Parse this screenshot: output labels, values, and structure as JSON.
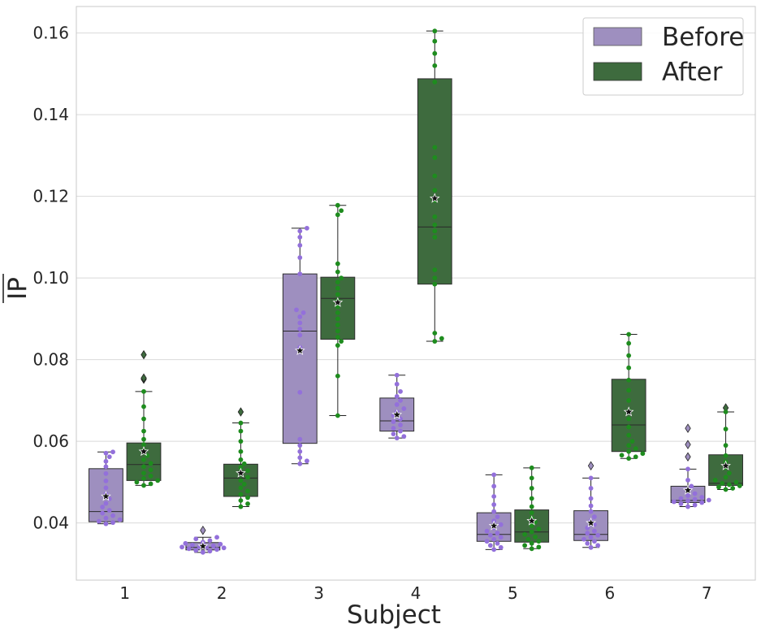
{
  "colors": {
    "before_box": "#9e8fbf",
    "before_point": "#9370db",
    "after_box": "#3e6b3e",
    "after_point": "#1e8c1e",
    "grid": "#d9d9d9",
    "frame": "#c8c8c8"
  },
  "chart_data": {
    "type": "box",
    "title": "",
    "xlabel": "Subject",
    "ylabel": "IP",
    "ylabel_style": "overlined",
    "ylim": [
      0.026,
      0.1665
    ],
    "yticks": [
      0.04,
      0.06,
      0.08,
      0.1,
      0.12,
      0.14,
      0.16
    ],
    "ytick_labels": [
      "0.04",
      "0.06",
      "0.08",
      "0.10",
      "0.12",
      "0.14",
      "0.16"
    ],
    "categories": [
      "1",
      "2",
      "3",
      "4",
      "5",
      "6",
      "7"
    ],
    "grid": "horizontal",
    "legend": {
      "position": "top-right",
      "entries": [
        "Before",
        "After"
      ]
    },
    "mean_marker": "star",
    "series": [
      {
        "name": "Before",
        "boxes": [
          {
            "category": "1",
            "whislo": 0.0398,
            "q1": 0.0403,
            "med": 0.0428,
            "q3": 0.0533,
            "whishi": 0.0574,
            "mean": 0.0465,
            "fliers": [],
            "points": [
              0.0398,
              0.0401,
              0.0404,
              0.0408,
              0.0412,
              0.0418,
              0.0424,
              0.0431,
              0.0439,
              0.0448,
              0.0459,
              0.0471,
              0.0486,
              0.0503,
              0.0521,
              0.0538,
              0.0551,
              0.0562,
              0.0571,
              0.0574
            ]
          },
          {
            "category": "2",
            "whislo": 0.0328,
            "q1": 0.0334,
            "med": 0.034,
            "q3": 0.0352,
            "whishi": 0.0365,
            "mean": 0.0343,
            "fliers": [
              0.0382
            ],
            "points": [
              0.0328,
              0.0331,
              0.0333,
              0.0335,
              0.0337,
              0.0339,
              0.034,
              0.0341,
              0.0342,
              0.0344,
              0.0346,
              0.0348,
              0.035,
              0.0353,
              0.0357,
              0.0361,
              0.0365
            ]
          },
          {
            "category": "3",
            "whislo": 0.0545,
            "q1": 0.0595,
            "med": 0.087,
            "q3": 0.101,
            "whishi": 0.1122,
            "mean": 0.0822,
            "fliers": [],
            "points": [
              0.0545,
              0.0552,
              0.056,
              0.0575,
              0.059,
              0.0605,
              0.072,
              0.083,
              0.086,
              0.0875,
              0.089,
              0.0905,
              0.0915,
              0.0922,
              0.101,
              0.105,
              0.108,
              0.11,
              0.1115,
              0.1122
            ]
          },
          {
            "category": "4",
            "whislo": 0.0608,
            "q1": 0.0625,
            "med": 0.065,
            "q3": 0.0706,
            "whishi": 0.0762,
            "mean": 0.0665,
            "fliers": [],
            "points": [
              0.0608,
              0.0612,
              0.0618,
              0.0625,
              0.0632,
              0.064,
              0.0648,
              0.0655,
              0.0663,
              0.0672,
              0.068,
              0.069,
              0.07,
              0.071,
              0.0722,
              0.074,
              0.0762
            ]
          },
          {
            "category": "5",
            "whislo": 0.0335,
            "q1": 0.0355,
            "med": 0.0372,
            "q3": 0.0425,
            "whishi": 0.0518,
            "mean": 0.0393,
            "fliers": [],
            "points": [
              0.0335,
              0.034,
              0.0345,
              0.035,
              0.0355,
              0.036,
              0.0365,
              0.037,
              0.0375,
              0.038,
              0.0388,
              0.0396,
              0.0405,
              0.0415,
              0.0428,
              0.0445,
              0.0465,
              0.049,
              0.0518
            ]
          },
          {
            "category": "6",
            "whislo": 0.034,
            "q1": 0.0357,
            "med": 0.0372,
            "q3": 0.043,
            "whishi": 0.051,
            "mean": 0.04,
            "fliers": [
              0.054
            ],
            "points": [
              0.034,
              0.0345,
              0.035,
              0.0355,
              0.036,
              0.0365,
              0.037,
              0.0375,
              0.038,
              0.0388,
              0.0396,
              0.0405,
              0.0415,
              0.0428,
              0.0442,
              0.046,
              0.0485,
              0.051
            ]
          },
          {
            "category": "7",
            "whislo": 0.044,
            "q1": 0.045,
            "med": 0.0455,
            "q3": 0.049,
            "whishi": 0.0532,
            "mean": 0.048,
            "fliers": [
              0.0562,
              0.0592,
              0.0632
            ],
            "points": [
              0.044,
              0.0444,
              0.0447,
              0.045,
              0.0452,
              0.0454,
              0.0456,
              0.0458,
              0.046,
              0.0463,
              0.0467,
              0.0472,
              0.048,
              0.049,
              0.0505,
              0.0532
            ]
          }
        ]
      },
      {
        "name": "After",
        "boxes": [
          {
            "category": "1",
            "whislo": 0.0492,
            "q1": 0.0504,
            "med": 0.0543,
            "q3": 0.0596,
            "whishi": 0.0722,
            "mean": 0.0575,
            "fliers": [
              0.0752,
              0.0755,
              0.0812
            ],
            "points": [
              0.0492,
              0.0496,
              0.05,
              0.0504,
              0.0509,
              0.0515,
              0.0522,
              0.053,
              0.0538,
              0.0546,
              0.0555,
              0.0565,
              0.0578,
              0.0592,
              0.0605,
              0.0625,
              0.0655,
              0.0685,
              0.0722
            ]
          },
          {
            "category": "2",
            "whislo": 0.044,
            "q1": 0.0465,
            "med": 0.051,
            "q3": 0.0544,
            "whishi": 0.0645,
            "mean": 0.0522,
            "fliers": [
              0.0672
            ],
            "points": [
              0.044,
              0.0447,
              0.0455,
              0.0462,
              0.047,
              0.0478,
              0.0486,
              0.0495,
              0.0504,
              0.0512,
              0.052,
              0.0528,
              0.0536,
              0.0545,
              0.0555,
              0.0575,
              0.06,
              0.0625,
              0.0645
            ]
          },
          {
            "category": "3",
            "whislo": 0.0663,
            "q1": 0.085,
            "med": 0.095,
            "q3": 0.1002,
            "whishi": 0.1178,
            "mean": 0.094,
            "fliers": [],
            "points": [
              0.0663,
              0.076,
              0.0835,
              0.0845,
              0.0855,
              0.087,
              0.0885,
              0.09,
              0.0915,
              0.093,
              0.0945,
              0.096,
              0.0975,
              0.099,
              0.1,
              0.1015,
              0.1035,
              0.1155,
              0.1165,
              0.1178
            ]
          },
          {
            "category": "4",
            "whislo": 0.0845,
            "q1": 0.0985,
            "med": 0.1125,
            "q3": 0.1488,
            "whishi": 0.1605,
            "mean": 0.1195,
            "fliers": [],
            "points": [
              0.0845,
              0.0852,
              0.0865,
              0.0985,
              0.1,
              0.102,
              0.11,
              0.1115,
              0.113,
              0.115,
              0.119,
              0.1215,
              0.125,
              0.1295,
              0.132,
              0.148,
              0.152,
              0.155,
              0.158,
              0.1605
            ]
          },
          {
            "category": "5",
            "whislo": 0.0337,
            "q1": 0.0353,
            "med": 0.0378,
            "q3": 0.0432,
            "whishi": 0.0535,
            "mean": 0.0405,
            "fliers": [],
            "points": [
              0.0337,
              0.0341,
              0.0345,
              0.035,
              0.0355,
              0.036,
              0.0366,
              0.0372,
              0.0378,
              0.0385,
              0.0393,
              0.0402,
              0.0412,
              0.0425,
              0.044,
              0.046,
              0.0485,
              0.051,
              0.0535
            ]
          },
          {
            "category": "6",
            "whislo": 0.0558,
            "q1": 0.0575,
            "med": 0.064,
            "q3": 0.0752,
            "whishi": 0.0862,
            "mean": 0.0672,
            "fliers": [],
            "points": [
              0.0558,
              0.0562,
              0.0566,
              0.057,
              0.0575,
              0.0582,
              0.059,
              0.06,
              0.0615,
              0.0635,
              0.0655,
              0.0675,
              0.07,
              0.0725,
              0.075,
              0.078,
              0.081,
              0.084,
              0.0862
            ]
          },
          {
            "category": "7",
            "whislo": 0.0482,
            "q1": 0.0492,
            "med": 0.0497,
            "q3": 0.0567,
            "whishi": 0.0672,
            "mean": 0.054,
            "fliers": [
              0.0682
            ],
            "points": [
              0.0482,
              0.0485,
              0.0488,
              0.0491,
              0.0494,
              0.0497,
              0.05,
              0.0505,
              0.0512,
              0.0522,
              0.0535,
              0.055,
              0.0565,
              0.059,
              0.063,
              0.0672
            ]
          }
        ]
      }
    ]
  }
}
